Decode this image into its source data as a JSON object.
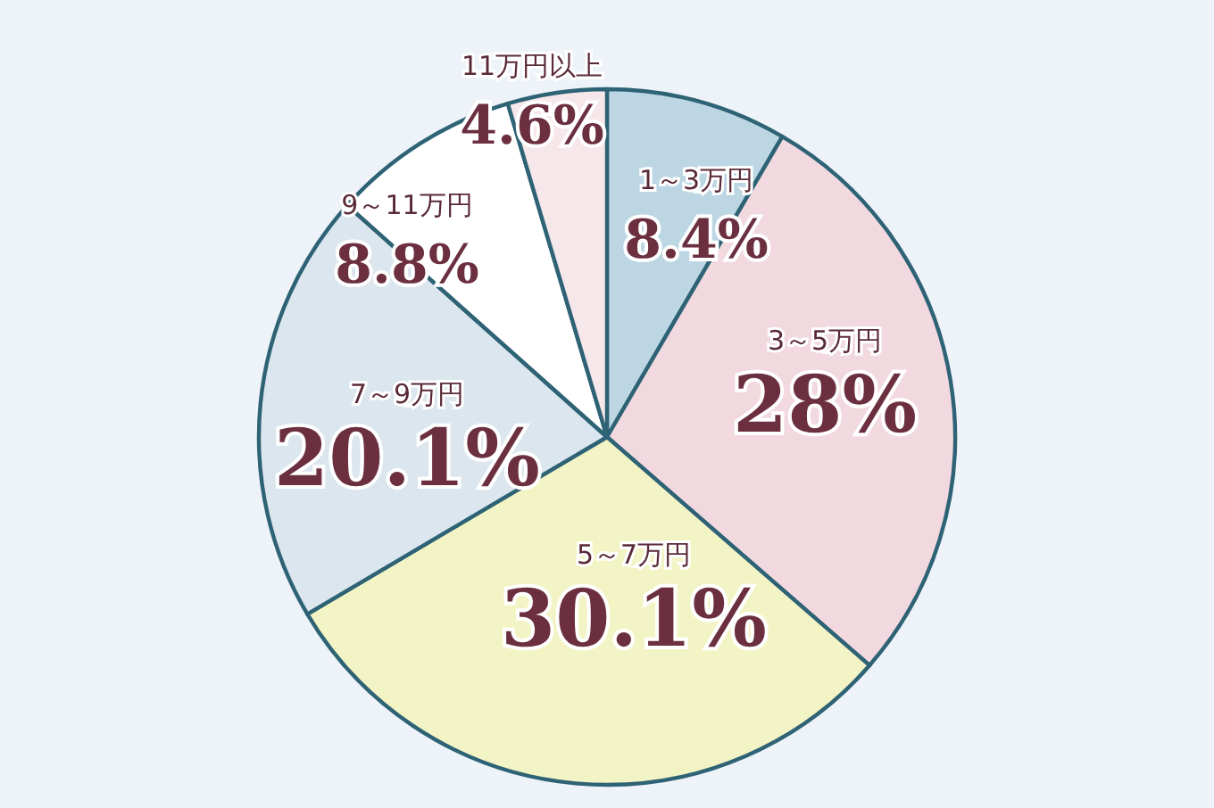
{
  "chart_data": {
    "type": "pie",
    "categories": [
      "1～3万円",
      "3～5万円",
      "5～7万円",
      "7～9万円",
      "9～11万円",
      "11万円以上"
    ],
    "values": [
      8.4,
      28,
      30.1,
      20.1,
      8.8,
      4.6
    ],
    "colors": [
      "#bcd6e4",
      "#f1d9df",
      "#f3f4c6",
      "#dce6ee",
      "#ffffff",
      "#f6e7ea"
    ],
    "value_labels": [
      "8.4%",
      "28%",
      "30.1%",
      "20.1%",
      "8.8%",
      "4.6%"
    ]
  }
}
